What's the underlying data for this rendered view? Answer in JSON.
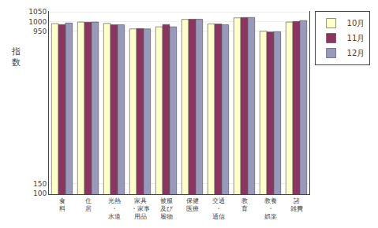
{
  "chart_data": {
    "type": "bar",
    "ylabel": "指\n数",
    "categories": [
      "食\n料",
      "住\n居",
      "光熱\n・\n水道",
      "家具\n・家事\n用品",
      "被服\n及び\n履物",
      "保健\n医療",
      "交通\n・\n通信",
      "教\n育",
      "教養\n・\n娯楽",
      "諸\n雑費"
    ],
    "series": [
      {
        "name": "10月",
        "color": "#FFFFCC",
        "values": [
          989,
          997,
          990,
          961,
          972,
          1011,
          988,
          1019,
          949,
          997
        ]
      },
      {
        "name": "11月",
        "color": "#8B3560",
        "values": [
          984,
          996,
          983,
          963,
          984,
          1012,
          987,
          1021,
          945,
          1000
        ]
      },
      {
        "name": "12月",
        "color": "#9999BB",
        "values": [
          992,
          997,
          983,
          961,
          972,
          1012,
          983,
          1021,
          946,
          1005
        ]
      }
    ],
    "ylim": [
      95,
      1055
    ],
    "yticks": [
      100,
      150,
      950,
      1000,
      1050
    ],
    "grid": true,
    "legend": "right"
  }
}
